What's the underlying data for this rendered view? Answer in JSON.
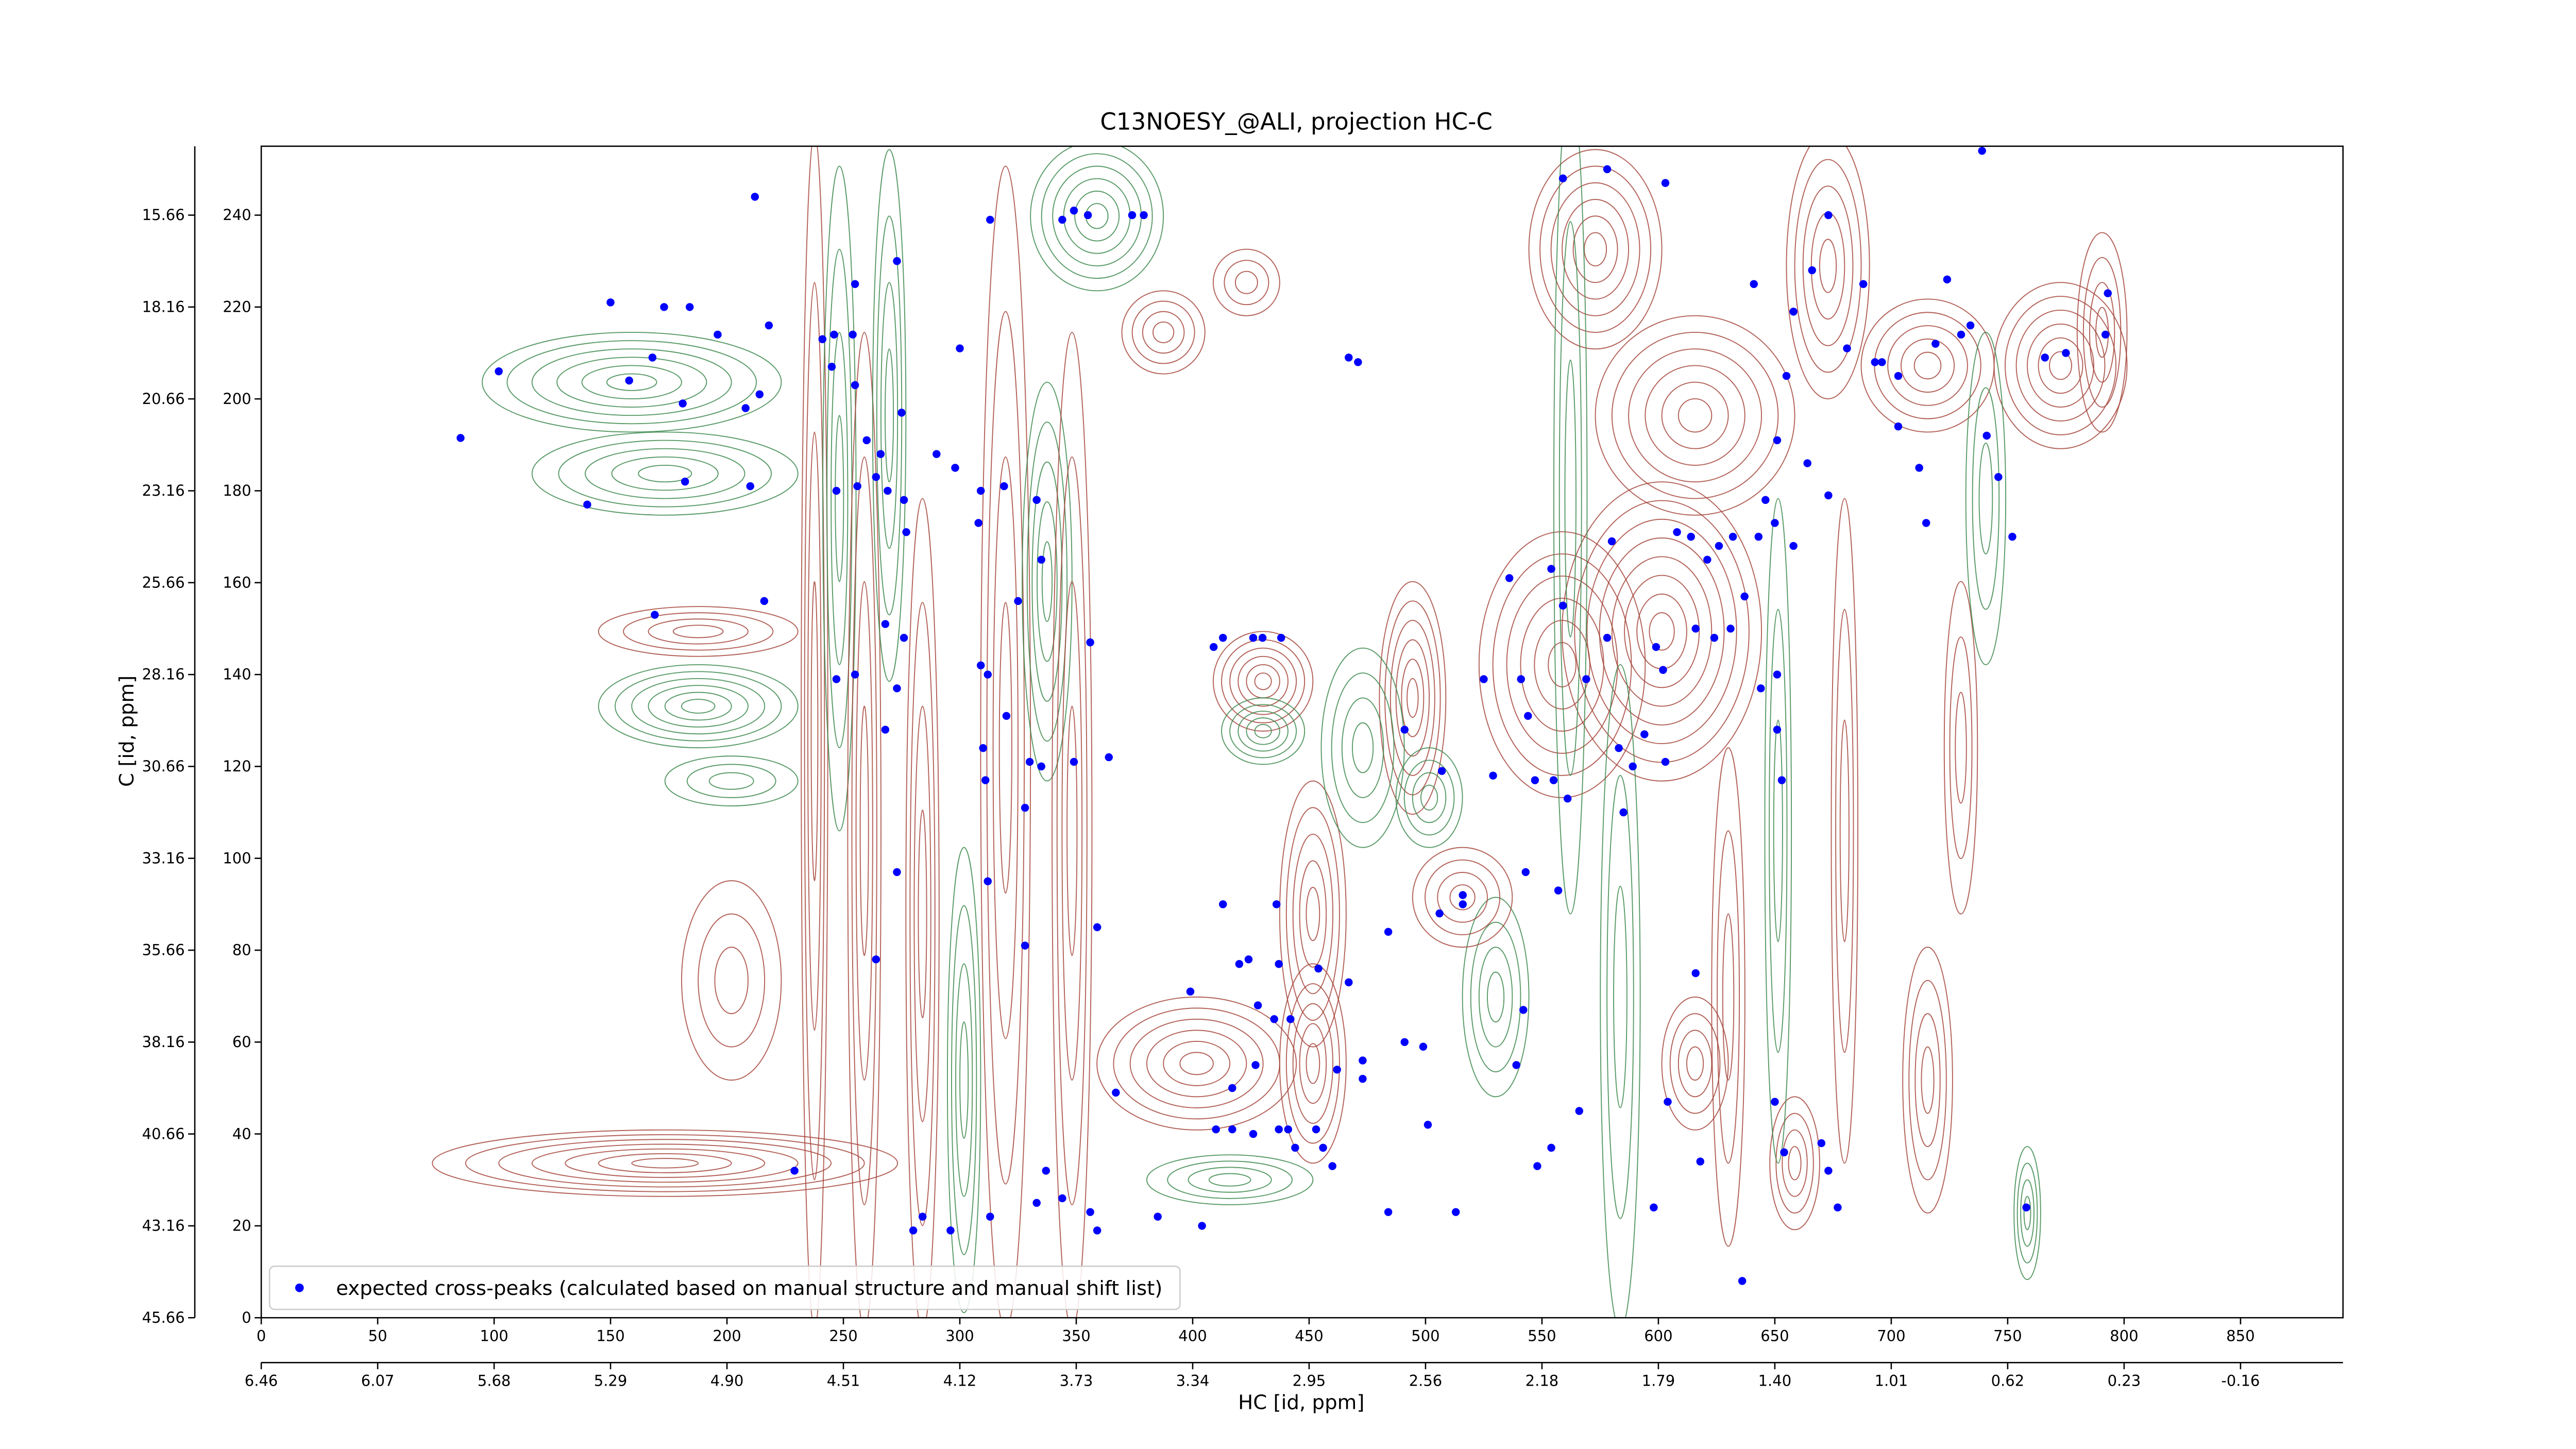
{
  "chart_data": {
    "type": "scatter",
    "title": "C13NOESY_@ALI, projection HC-C",
    "x_label": "HC [id, ppm]",
    "y_label": "C [id, ppm]",
    "xlim": [
      0,
      894
    ],
    "ylim": [
      0,
      255
    ],
    "xticks": [
      0,
      50,
      100,
      150,
      200,
      250,
      300,
      350,
      400,
      450,
      500,
      550,
      600,
      650,
      700,
      750,
      800,
      850
    ],
    "yticks": [
      0,
      20,
      40,
      60,
      80,
      100,
      120,
      140,
      160,
      180,
      200,
      220,
      240
    ],
    "x2ticks": [
      {
        "value": 0,
        "label": "6.46"
      },
      {
        "value": 50,
        "label": "6.07"
      },
      {
        "value": 100,
        "label": "5.68"
      },
      {
        "value": 150,
        "label": "5.29"
      },
      {
        "value": 200,
        "label": "4.90"
      },
      {
        "value": 250,
        "label": "4.51"
      },
      {
        "value": 300,
        "label": "4.12"
      },
      {
        "value": 350,
        "label": "3.73"
      },
      {
        "value": 400,
        "label": "3.34"
      },
      {
        "value": 450,
        "label": "2.95"
      },
      {
        "value": 500,
        "label": "2.56"
      },
      {
        "value": 550,
        "label": "2.18"
      },
      {
        "value": 600,
        "label": "1.79"
      },
      {
        "value": 650,
        "label": "1.40"
      },
      {
        "value": 700,
        "label": "1.01"
      },
      {
        "value": 750,
        "label": "0.62"
      },
      {
        "value": 800,
        "label": "0.23"
      },
      {
        "value": 850,
        "label": "-0.16"
      }
    ],
    "y2ticks": [
      {
        "value": 0,
        "label": "45.66"
      },
      {
        "value": 20,
        "label": "43.16"
      },
      {
        "value": 40,
        "label": "40.66"
      },
      {
        "value": 60,
        "label": "38.16"
      },
      {
        "value": 80,
        "label": "35.66"
      },
      {
        "value": 100,
        "label": "33.16"
      },
      {
        "value": 120,
        "label": "30.66"
      },
      {
        "value": 140,
        "label": "28.16"
      },
      {
        "value": 160,
        "label": "25.66"
      },
      {
        "value": 180,
        "label": "23.16"
      },
      {
        "value": 200,
        "label": "20.66"
      },
      {
        "value": 220,
        "label": "18.16"
      },
      {
        "value": 240,
        "label": "15.66"
      }
    ],
    "legend": "lower left",
    "series": [
      {
        "name": "expected cross-peaks (calculated based on manual structure and manual shift list)",
        "color": "#0000ff",
        "x": [
          85.6,
          102,
          140,
          150,
          158,
          168,
          173,
          181,
          182,
          184,
          196,
          208,
          210,
          212,
          214,
          218,
          216,
          169,
          229,
          241,
          246,
          245,
          254,
          255,
          247,
          256,
          264,
          269,
          273,
          275,
          276,
          277,
          268,
          273,
          276,
          268,
          273,
          264,
          255,
          247,
          280,
          284,
          296,
          255,
          260,
          266,
          290,
          300,
          298,
          309,
          308,
          313,
          319,
          333,
          335,
          325,
          309,
          312,
          320,
          310,
          311,
          330,
          335,
          328,
          312,
          328,
          349,
          344,
          349,
          355,
          364,
          356,
          359,
          367,
          374,
          379,
          313,
          337,
          344,
          356,
          359,
          385,
          333,
          399,
          404,
          409,
          413,
          420,
          426,
          430,
          438,
          436,
          413,
          424,
          437,
          454,
          428,
          435,
          442,
          427,
          417,
          410,
          417,
          426,
          437,
          441,
          453,
          444,
          456,
          460,
          467,
          471,
          467,
          473,
          473,
          462,
          484,
          491,
          491,
          499,
          507,
          501,
          513,
          484,
          516,
          516,
          506,
          536,
          529,
          525,
          541,
          544,
          547,
          555,
          554,
          559,
          557,
          543,
          542,
          539,
          548,
          554,
          566,
          561,
          569,
          578,
          580,
          583,
          585,
          589,
          594,
          599,
          602,
          603,
          608,
          614,
          621,
          626,
          632,
          616,
          624,
          631,
          637,
          643,
          644,
          651,
          651,
          653,
          604,
          616,
          618,
          598,
          636,
          650,
          654,
          559,
          578,
          603,
          641,
          651,
          650,
          655,
          658,
          666,
          673,
          673,
          681,
          688,
          693,
          696,
          703,
          703,
          712,
          715,
          719,
          724,
          730,
          734,
          739,
          741,
          746,
          752,
          766,
          775,
          792,
          793,
          758,
          670,
          673,
          677,
          664,
          646,
          658
        ],
        "values": [
          191.5,
          206,
          177,
          221,
          204,
          209,
          220,
          199,
          182,
          220,
          214,
          198,
          181,
          244,
          201,
          216,
          156,
          153,
          32,
          213,
          214,
          207,
          214,
          225,
          180,
          181,
          183,
          180,
          230,
          197,
          178,
          171,
          151,
          137,
          148,
          128,
          97,
          78,
          140,
          139,
          19,
          22,
          19,
          203,
          191,
          188,
          188,
          211,
          185,
          180,
          173,
          239,
          181,
          178,
          165,
          156,
          142,
          140,
          131,
          124,
          117,
          121,
          120,
          111,
          95,
          81,
          121,
          239,
          241,
          240,
          122,
          147,
          85,
          49,
          240,
          240,
          22,
          32,
          26,
          23,
          19,
          22,
          25,
          71,
          20,
          146,
          148,
          77,
          148,
          148,
          148,
          90,
          90,
          78,
          77,
          76,
          68,
          65,
          65,
          55,
          50,
          41,
          41,
          40,
          41,
          41,
          41,
          37,
          37,
          33,
          209,
          208,
          73,
          56,
          52,
          54,
          84,
          128,
          60,
          59,
          119,
          42,
          23,
          23,
          92,
          90,
          88,
          161,
          118,
          139,
          139,
          131,
          117,
          117,
          163,
          155,
          93,
          97,
          67,
          55,
          33,
          37,
          45,
          113,
          139,
          148,
          169,
          124,
          110,
          120,
          127,
          146,
          141,
          121,
          171,
          170,
          165,
          168,
          170,
          150,
          148,
          150,
          157,
          170,
          137,
          140,
          128,
          117,
          47,
          75,
          34,
          24,
          8,
          47,
          36,
          248,
          250,
          247,
          225,
          191,
          173,
          205,
          219,
          228,
          240,
          179,
          211,
          225,
          208,
          208,
          194,
          205,
          185,
          173,
          212,
          226,
          214,
          216,
          254,
          192,
          183,
          170,
          209,
          210,
          214,
          223,
          24,
          38,
          32,
          24,
          186,
          178,
          168
        ]
      }
    ]
  }
}
